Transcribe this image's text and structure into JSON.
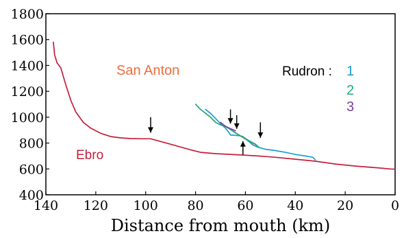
{
  "chart_data": {
    "type": "line",
    "title": "",
    "xlabel": "Distance from mouth (km)",
    "ylabel": "",
    "xlim": [
      140,
      0
    ],
    "ylim": [
      400,
      1800
    ],
    "x_ticks": [
      "140",
      "120",
      "100",
      "80",
      "60",
      "40",
      "20",
      "0"
    ],
    "y_ticks": [
      "1800",
      "1600",
      "1400",
      "1200",
      "1000",
      "800",
      "600",
      "400"
    ],
    "grid": false,
    "legend": "none",
    "series": [
      {
        "name": "Ebro",
        "color": "#c41e3a",
        "points": [
          [
            137,
            1580
          ],
          [
            136.5,
            1480
          ],
          [
            135.5,
            1420
          ],
          [
            134,
            1380
          ],
          [
            132,
            1250
          ],
          [
            130,
            1130
          ],
          [
            128,
            1040
          ],
          [
            125,
            960
          ],
          [
            122,
            915
          ],
          [
            118,
            875
          ],
          [
            114,
            850
          ],
          [
            110,
            840
          ],
          [
            106,
            835
          ],
          [
            102,
            833
          ],
          [
            98,
            833
          ],
          [
            94,
            812
          ],
          [
            88,
            780
          ],
          [
            82,
            748
          ],
          [
            78,
            728
          ],
          [
            72,
            718
          ],
          [
            64,
            710
          ],
          [
            56,
            702
          ],
          [
            48,
            690
          ],
          [
            40,
            675
          ],
          [
            32,
            660
          ],
          [
            24,
            638
          ],
          [
            16,
            622
          ],
          [
            8,
            610
          ],
          [
            2,
            600
          ],
          [
            0,
            598
          ]
        ]
      },
      {
        "name": "San Anton",
        "color": "#f26b3a",
        "points": [
          [
            68,
            930
          ],
          [
            66,
            905
          ],
          [
            64,
            880
          ],
          [
            62,
            855
          ],
          [
            60,
            830
          ],
          [
            58,
            808
          ],
          [
            56,
            788
          ],
          [
            54.5,
            765
          ]
        ]
      },
      {
        "name": "1",
        "color": "#1a9ad6",
        "points": [
          [
            76,
            1060
          ],
          [
            74,
            1030
          ],
          [
            72,
            990
          ],
          [
            70,
            950
          ],
          [
            68,
            915
          ],
          [
            66.5,
            878
          ],
          [
            66,
            862
          ],
          [
            63,
            858
          ],
          [
            61,
            850
          ],
          [
            59,
            818
          ],
          [
            57,
            785
          ],
          [
            55,
            768
          ],
          [
            52,
            752
          ],
          [
            48,
            742
          ],
          [
            44,
            728
          ],
          [
            40,
            712
          ],
          [
            36,
            700
          ],
          [
            33,
            690
          ],
          [
            32,
            670
          ]
        ]
      },
      {
        "name": "2",
        "color": "#1faa7a",
        "points": [
          [
            80,
            1100
          ],
          [
            78,
            1060
          ],
          [
            76,
            1030
          ],
          [
            74,
            1000
          ],
          [
            72,
            960
          ],
          [
            70,
            940
          ],
          [
            68,
            928
          ],
          [
            66,
            905
          ],
          [
            64,
            878
          ],
          [
            62,
            856
          ],
          [
            60,
            835
          ],
          [
            58,
            812
          ],
          [
            56,
            792
          ],
          [
            54.5,
            765
          ]
        ]
      },
      {
        "name": "3",
        "color": "#7b3fa0",
        "points": [
          [
            70,
            960
          ],
          [
            68,
            930
          ],
          [
            66,
            912
          ],
          [
            64,
            895
          ]
        ]
      }
    ],
    "arrows": [
      {
        "x": 98,
        "y_from": 1000,
        "y_to": 880,
        "direction": "down"
      },
      {
        "x": 66,
        "y_from": 1060,
        "y_to": 950,
        "direction": "down"
      },
      {
        "x": 63.5,
        "y_from": 1015,
        "y_to": 910,
        "direction": "down"
      },
      {
        "x": 54,
        "y_from": 960,
        "y_to": 840,
        "direction": "down"
      },
      {
        "x": 61,
        "y_from": 710,
        "y_to": 815,
        "direction": "up"
      }
    ],
    "annotations": {
      "ebro": {
        "text": "Ebro",
        "color": "#c41e3a"
      },
      "san_anton": {
        "text": "San Anton",
        "color": "#f26b3a"
      },
      "rudron": {
        "text": "Rudron :",
        "color": "#000000"
      },
      "rudron_1": {
        "text": "1",
        "color": "#1a9ad6"
      },
      "rudron_2": {
        "text": "2",
        "color": "#1faa7a"
      },
      "rudron_3": {
        "text": "3",
        "color": "#7b3fa0"
      }
    }
  }
}
